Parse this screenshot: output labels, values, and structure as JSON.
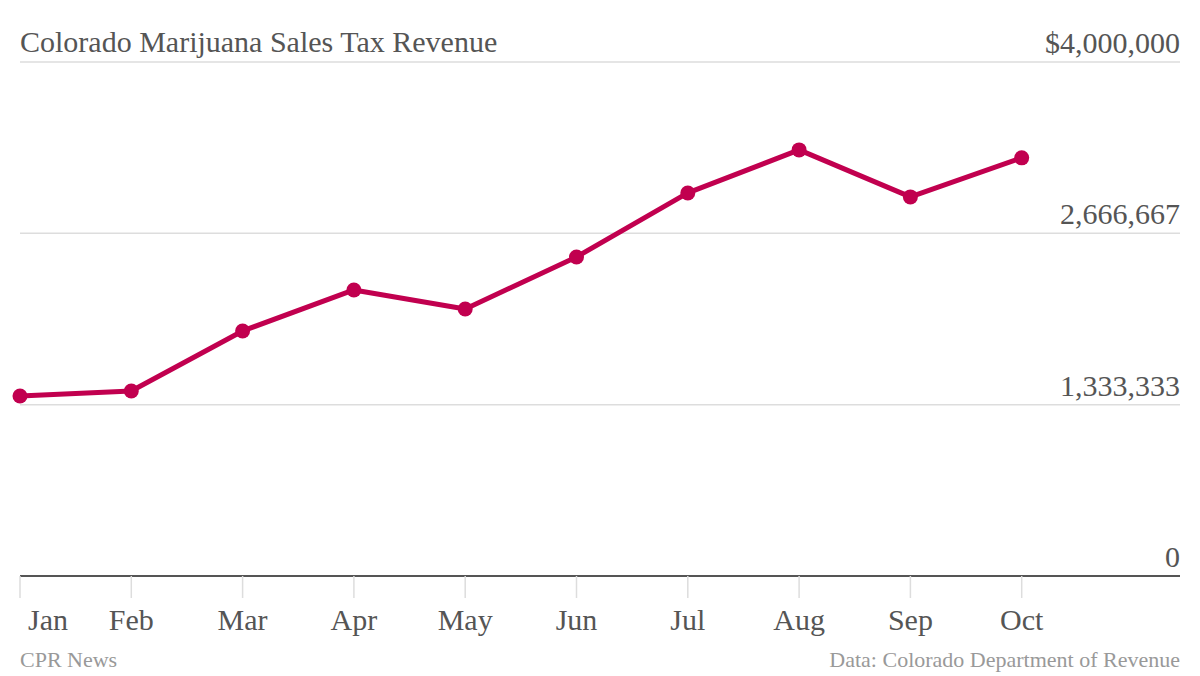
{
  "chart_data": {
    "type": "line",
    "title": "Colorado Marijuana Sales Tax Revenue",
    "categories": [
      "Jan",
      "Feb",
      "Mar",
      "Apr",
      "May",
      "Jun",
      "Jul",
      "Aug",
      "Sep",
      "Oct"
    ],
    "values": [
      1401000,
      1440000,
      1907000,
      2226000,
      2078000,
      2483000,
      2981000,
      3316000,
      2950000,
      3254000
    ],
    "color": "#c1004f",
    "marker": "circle",
    "ylim": [
      0,
      4000000
    ],
    "yticks": [
      0,
      {
        "value": 1333333,
        "label": "1,333,333"
      },
      {
        "value": 2666667,
        "label": "2,666,667"
      },
      {
        "value": 4000000,
        "label": "$4,000,000"
      }
    ],
    "grid": true,
    "credit": "CPR News",
    "source": "Data: Colorado Department of Revenue"
  }
}
